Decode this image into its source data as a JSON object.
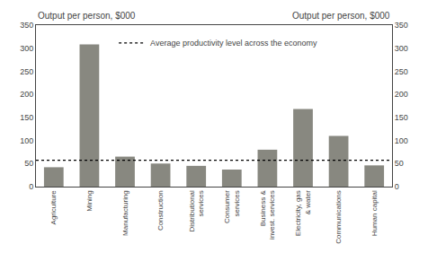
{
  "chart_data": {
    "type": "bar",
    "categories": [
      "Agriculture",
      "Mining",
      "Manufacturing",
      "Construction",
      "Distributional\nservices",
      "Consumer\nservices",
      "Business &\ninvest. services",
      "Electricity, gas\n& water",
      "Communications",
      "Human capital"
    ],
    "values": [
      42,
      308,
      65,
      50,
      45,
      37,
      80,
      168,
      110,
      46
    ],
    "color": "#888880",
    "avg_line": {
      "name": "Average productivity level across the economy",
      "value": 57,
      "color": "#000000",
      "line_style": "dotted",
      "axis": "y2"
    },
    "ylabel": "Output per person, $000",
    "y2label": "Output per person, $000",
    "ylim": [
      0,
      350
    ],
    "yticks": [
      0,
      50,
      100,
      150,
      200,
      250,
      300,
      350
    ],
    "y2lim": [
      0,
      350
    ],
    "y2ticks": [
      0,
      50,
      100,
      150,
      200,
      250,
      300,
      350
    ],
    "grid": false,
    "legend": "upper left"
  }
}
